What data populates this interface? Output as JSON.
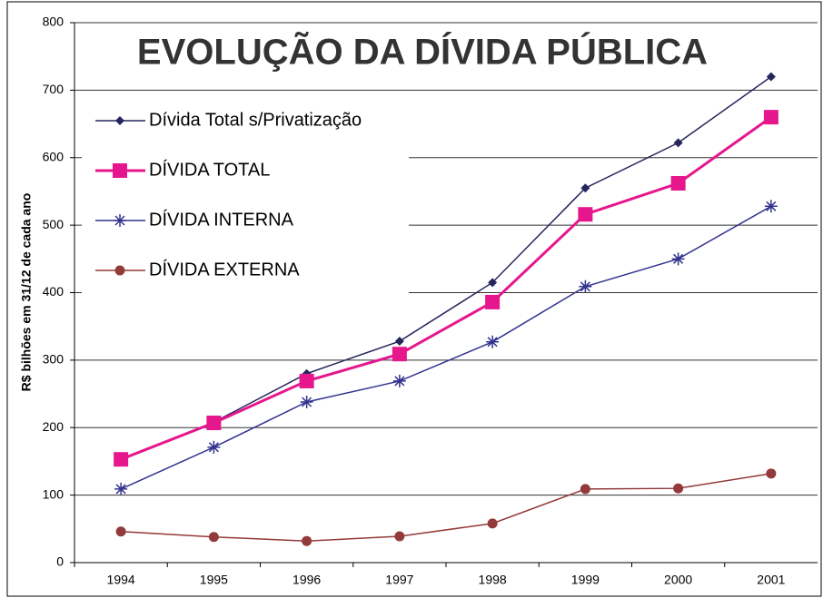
{
  "chart_data": {
    "type": "line",
    "title": "EVOLUÇÃO DA DÍVIDA PÚBLICA",
    "y_label": "R$ bilhões em 31/12 de cada ano",
    "categories": [
      "1994",
      "1995",
      "1996",
      "1997",
      "1998",
      "1999",
      "2000",
      "2001"
    ],
    "series": [
      {
        "name": "Dívida Total s/Privatização",
        "color": "#26265e",
        "marker": "diamond",
        "values": [
          153,
          208,
          280,
          328,
          415,
          555,
          622,
          720
        ]
      },
      {
        "name": "DÍVIDA TOTAL",
        "color": "#e6168c",
        "marker": "square",
        "values": [
          153,
          207,
          269,
          309,
          386,
          516,
          562,
          660
        ]
      },
      {
        "name": "DÍVIDA INTERNA",
        "color": "#33338f",
        "marker": "asterisk",
        "values": [
          109,
          171,
          238,
          269,
          327,
          409,
          450,
          528
        ]
      },
      {
        "name": "DÍVIDA EXTERNA",
        "color": "#933a3a",
        "marker": "circle",
        "values": [
          46,
          38,
          32,
          39,
          58,
          109,
          110,
          132
        ]
      }
    ],
    "ylim": [
      0,
      800
    ],
    "yticks": [
      0,
      100,
      200,
      300,
      400,
      500,
      600,
      700,
      800
    ],
    "grid": true,
    "legend": "upper left"
  }
}
